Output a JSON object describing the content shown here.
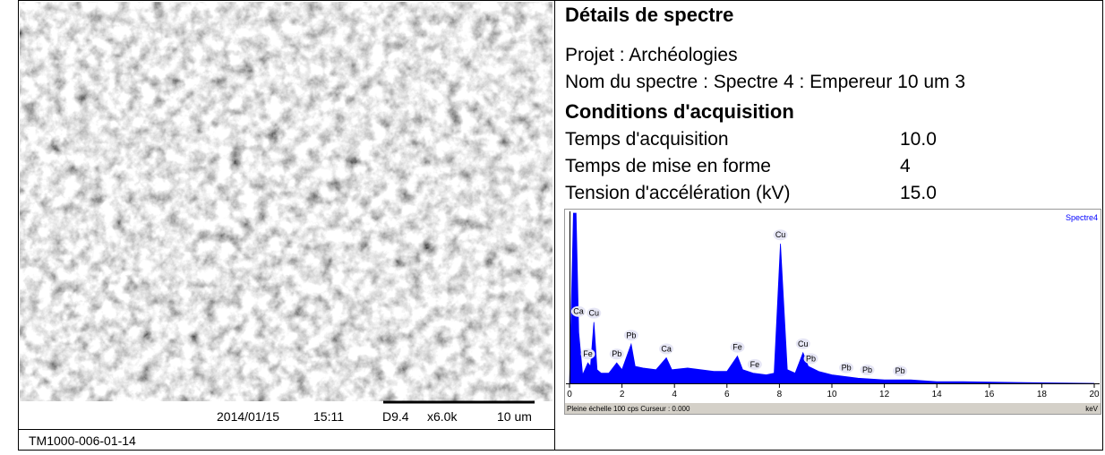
{
  "image_panel": {
    "date": "2014/01/15",
    "time": "15:11",
    "working_distance": "D9.4",
    "magnification": "x6.0k",
    "scale": "10 um",
    "sample_id": "TM1000-006-01-14"
  },
  "details": {
    "title": "Détails de spectre",
    "project": "Projet : Archéologies",
    "spectrum_name": "Nom du spectre : Spectre 4 : Empereur 10 um 3",
    "conditions_title": "Conditions d'acquisition",
    "conditions": [
      [
        "Temps d'acquisition",
        "10.0"
      ],
      [
        "Temps de mise en forme",
        "4"
      ],
      [
        "Tension d'accélération (kV)",
        "15.0"
      ]
    ]
  },
  "chart_data": {
    "type": "area",
    "x": [
      0,
      0.15,
      0.25,
      0.35,
      0.5,
      0.7,
      0.8,
      0.93,
      1.05,
      1.2,
      1.5,
      1.8,
      2.0,
      2.35,
      2.5,
      2.8,
      3.3,
      3.69,
      3.9,
      4.5,
      5.0,
      5.5,
      6.0,
      6.4,
      6.6,
      7.0,
      7.5,
      7.8,
      8.04,
      8.3,
      8.6,
      8.9,
      9.1,
      9.5,
      10.0,
      10.5,
      11.0,
      12.0,
      13.0,
      14.0,
      15.0,
      17.0,
      20.0
    ],
    "series": [
      {
        "name": "Spectre4",
        "color": "#0000ff",
        "values": [
          0,
          100,
          100,
          30,
          5,
          12,
          10,
          36,
          8,
          6,
          6,
          12,
          8,
          23,
          10,
          9,
          8,
          15,
          8,
          9,
          8,
          7,
          7,
          16,
          8,
          6,
          5,
          6,
          82,
          8,
          6,
          18,
          10,
          7,
          5,
          4,
          3,
          2,
          2,
          1,
          1,
          0.5,
          0
        ]
      }
    ],
    "xlim": [
      0,
      20
    ],
    "xticks": [
      0,
      2,
      4,
      6,
      8,
      10,
      12,
      14,
      16,
      18,
      20
    ],
    "ylim": [
      0,
      100
    ],
    "x_unit": "keV",
    "footer": "Pleine échelle 100 cps  Curseur : 0.000",
    "peaks": [
      {
        "label": "Ca",
        "x": 0.34
      },
      {
        "label": "Fe",
        "x": 0.7
      },
      {
        "label": "Cu",
        "x": 0.93
      },
      {
        "label": "Pb",
        "x": 1.8
      },
      {
        "label": "Pb",
        "x": 2.35
      },
      {
        "label": "Ca",
        "x": 3.69
      },
      {
        "label": "Fe",
        "x": 6.4
      },
      {
        "label": "Fe",
        "x": 7.06
      },
      {
        "label": "Cu",
        "x": 8.04
      },
      {
        "label": "Cu",
        "x": 8.9
      },
      {
        "label": "Pb",
        "x": 9.2
      },
      {
        "label": "Pb",
        "x": 10.55
      },
      {
        "label": "Pb",
        "x": 11.35
      },
      {
        "label": "Pb",
        "x": 12.6
      }
    ]
  }
}
